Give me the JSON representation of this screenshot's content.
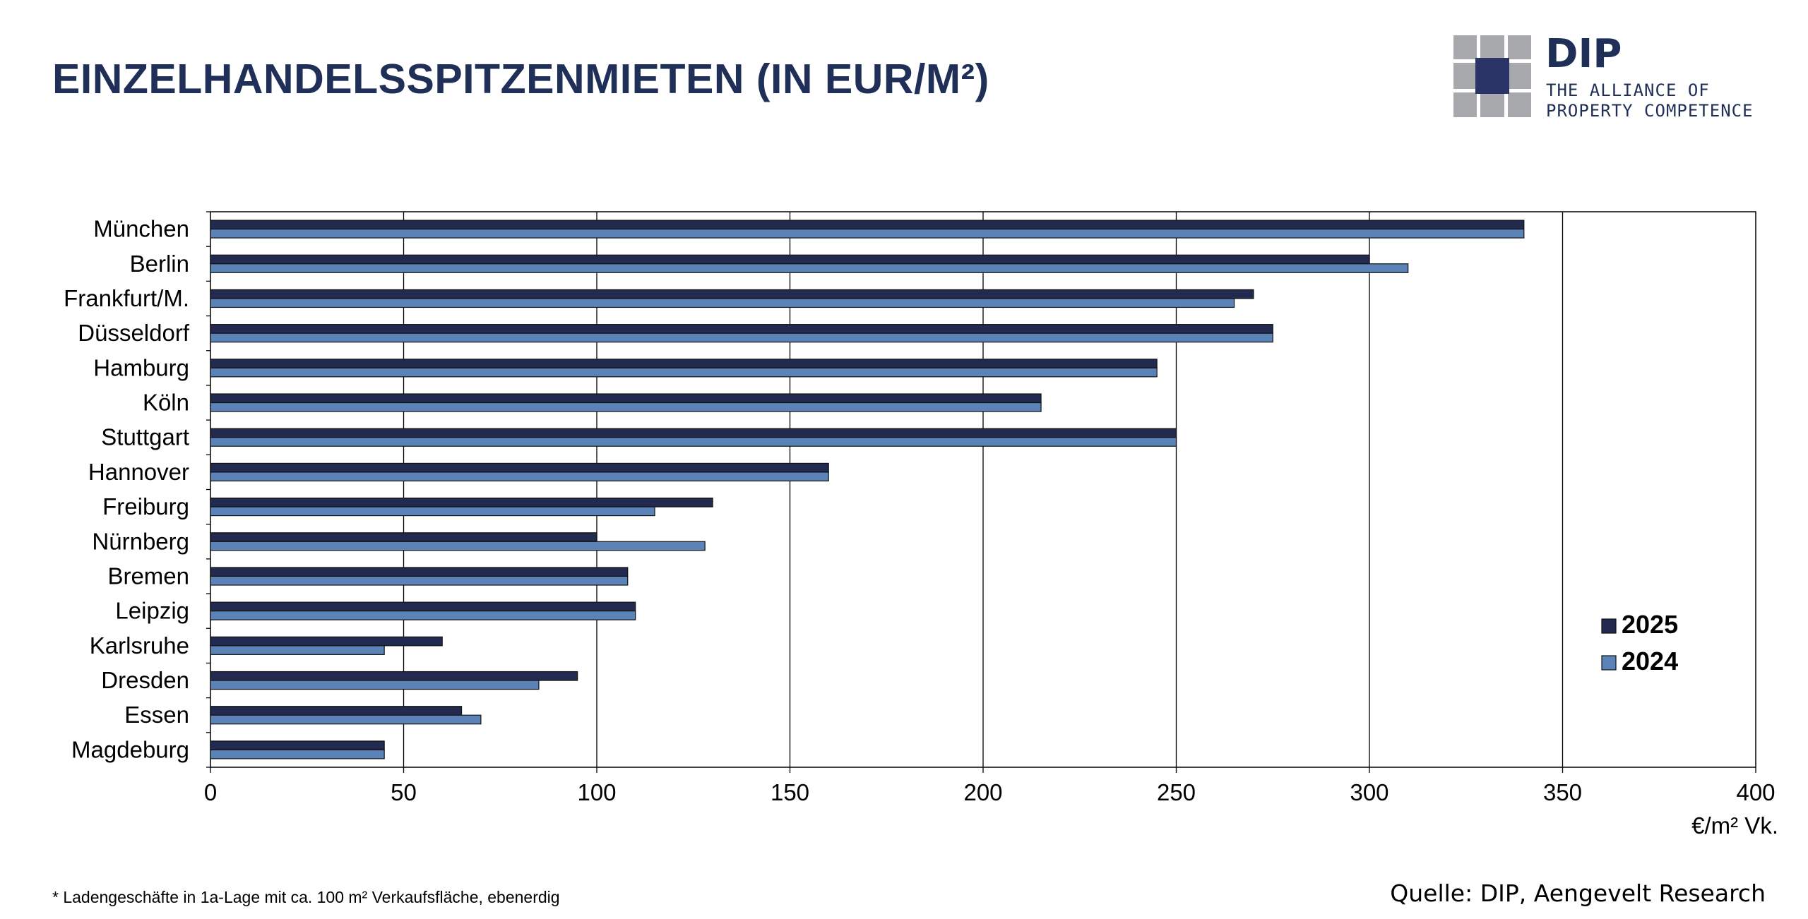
{
  "header": {
    "title": "EINZELHANDELSSPITZENMIETEN (IN EUR/M²)"
  },
  "logo": {
    "name": "DIP",
    "tagline_line1": "THE ALLIANCE OF",
    "tagline_line2": "PROPERTY COMPETENCE",
    "colors": {
      "dark": "#2b3466",
      "grey": "#a8a9ad"
    }
  },
  "chart_data": {
    "type": "bar",
    "orientation": "horizontal",
    "categories": [
      "München",
      "Berlin",
      "Frankfurt/M.",
      "Düsseldorf",
      "Hamburg",
      "Köln",
      "Stuttgart",
      "Hannover",
      "Freiburg",
      "Nürnberg",
      "Bremen",
      "Leipzig",
      "Karlsruhe",
      "Dresden",
      "Essen",
      "Magdeburg"
    ],
    "series": [
      {
        "name": "2025",
        "color": "#232a4f",
        "values": [
          340,
          300,
          270,
          275,
          245,
          215,
          250,
          160,
          130,
          100,
          108,
          110,
          60,
          95,
          65,
          45
        ]
      },
      {
        "name": "2024",
        "color": "#5b83b8",
        "values": [
          340,
          310,
          265,
          275,
          245,
          215,
          250,
          160,
          115,
          128,
          108,
          110,
          45,
          85,
          70,
          45
        ]
      }
    ],
    "xlim": [
      0,
      400
    ],
    "xticks": [
      "0",
      "50",
      "100",
      "150",
      "200",
      "250",
      "300",
      "350",
      "400"
    ],
    "xlabel": "€/m² Vk.",
    "grid": "vertical",
    "legend_position": "right"
  },
  "footer": {
    "footnote": "* Ladengeschäfte in 1a-Lage mit ca. 100 m² Verkaufsfläche, ebenerdig",
    "source": "Quelle: DIP, Aengevelt Research"
  }
}
